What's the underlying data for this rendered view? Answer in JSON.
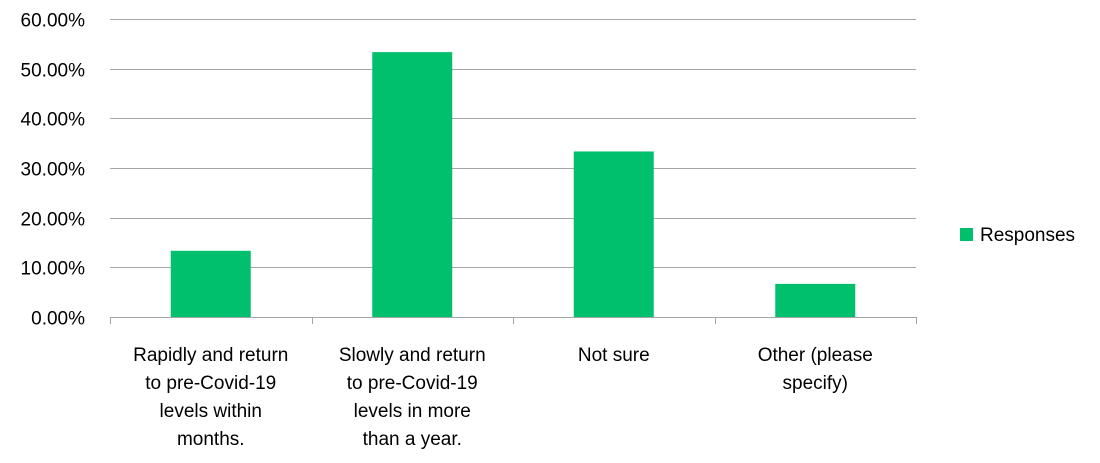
{
  "chart_data": {
    "type": "bar",
    "categories": [
      [
        "Rapidly and return",
        "to pre-Covid-19",
        "levels within",
        "months."
      ],
      [
        "Slowly and return",
        "to pre-Covid-19",
        "levels in more",
        "than a year."
      ],
      [
        "Not sure"
      ],
      [
        "Other (please",
        "specify)"
      ]
    ],
    "series": [
      {
        "name": "Responses",
        "values": [
          13.33,
          53.33,
          33.33,
          6.67
        ],
        "color": "#00C06E"
      }
    ],
    "ylim": [
      0,
      60
    ],
    "ytick_values": [
      0,
      10,
      20,
      30,
      40,
      50,
      60
    ],
    "ytick_labels": [
      "0.00%",
      "10.00%",
      "20.00%",
      "30.00%",
      "40.00%",
      "50.00%",
      "60.00%"
    ],
    "gridlines": true,
    "legend_position": "right",
    "title": "",
    "xlabel": "",
    "ylabel": ""
  }
}
